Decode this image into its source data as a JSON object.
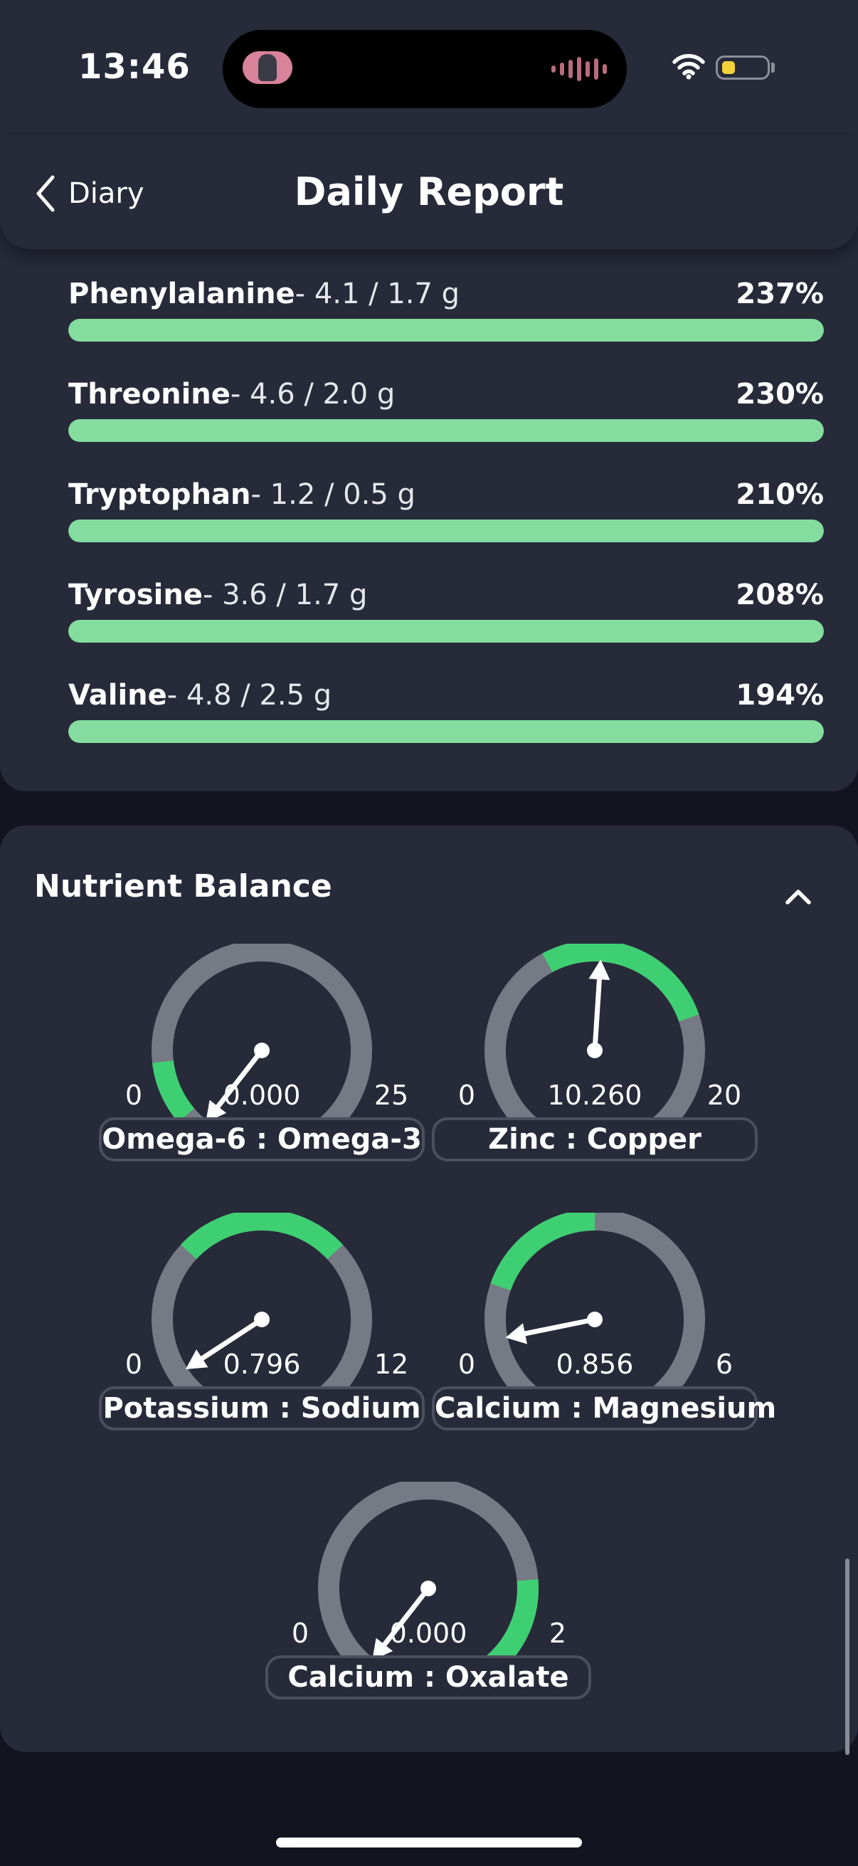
{
  "status_bar": {
    "time": "13:46",
    "wifi_icon": "wifi-icon",
    "battery_icon": "battery-low-icon",
    "battery_color": "#f3d23a"
  },
  "header": {
    "back_label": "Diary",
    "title": "Daily Report"
  },
  "amino_acids": [
    {
      "name": "Phenylalanine",
      "detail": "- 4.1 / 1.7 g",
      "percent": "237%",
      "progress": 1.0
    },
    {
      "name": "Threonine",
      "detail": "- 4.6 / 2.0 g",
      "percent": "230%",
      "progress": 1.0
    },
    {
      "name": "Tryptophan",
      "detail": "- 1.2 / 0.5 g",
      "percent": "210%",
      "progress": 1.0
    },
    {
      "name": "Tyrosine",
      "detail": "- 3.6 / 1.7 g",
      "percent": "208%",
      "progress": 1.0
    },
    {
      "name": "Valine",
      "detail": "- 4.8 / 2.5 g",
      "percent": "194%",
      "progress": 1.0
    }
  ],
  "nutrient_balance": {
    "title": "Nutrient Balance",
    "toggle_icon": "chevron-up-icon",
    "gauges": [
      {
        "label": "Omega-6 : Omega-3",
        "min": "0",
        "max": "25",
        "value": "0.000",
        "numeric_value": 0.0,
        "range_min": 0,
        "range_max": 25,
        "optimal_range": [
          1,
          4
        ]
      },
      {
        "label": "Zinc : Copper",
        "min": "0",
        "max": "20",
        "value": "10.260",
        "numeric_value": 10.26,
        "range_min": 0,
        "range_max": 20,
        "optimal_range": [
          8,
          15
        ]
      },
      {
        "label": "Potassium : Sodium",
        "min": "0",
        "max": "12",
        "value": "0.796",
        "numeric_value": 0.796,
        "range_min": 0,
        "range_max": 12,
        "optimal_range": [
          4,
          8
        ]
      },
      {
        "label": "Calcium : Magnesium",
        "min": "0",
        "max": "6",
        "value": "0.856",
        "numeric_value": 0.856,
        "range_min": 0,
        "range_max": 6,
        "optimal_range": [
          1.5,
          3
        ]
      },
      {
        "label": "Calcium : Oxalate",
        "min": "0",
        "max": "2",
        "value": "0.000",
        "numeric_value": 0.0,
        "range_min": 0,
        "range_max": 2,
        "optimal_range": [
          1.6,
          2
        ]
      }
    ]
  },
  "colors": {
    "good": "#84dd9f",
    "gauge_optimal": "#3fcf73",
    "gauge_track": "#767a85",
    "card": "#262a39",
    "background": "#13141f"
  }
}
